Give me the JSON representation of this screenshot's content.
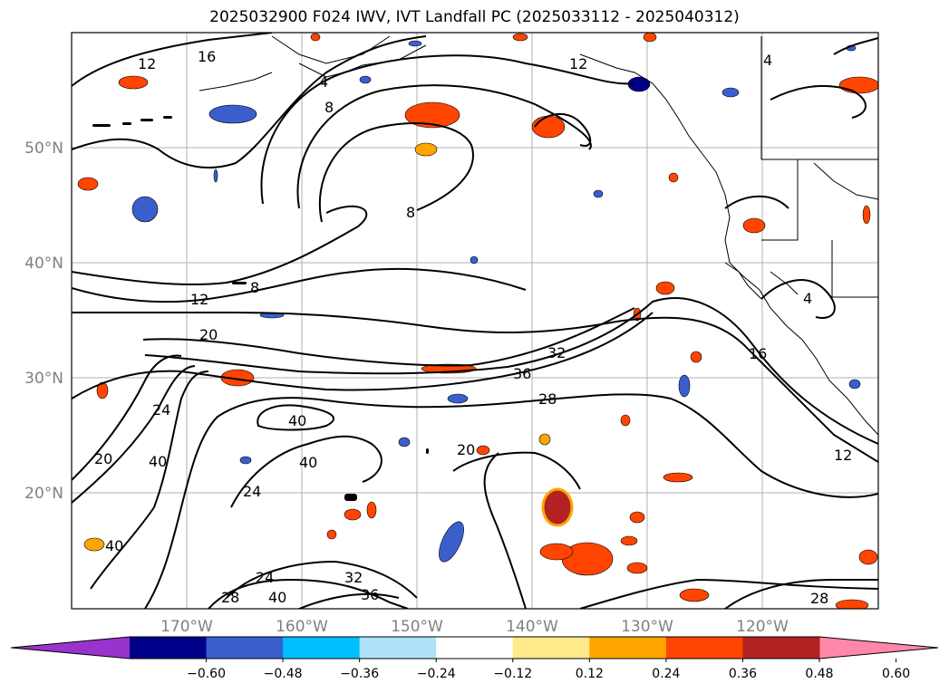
{
  "title": "2025032900 F024 IWV, IVT Landfall PC (2025033112 - 2025040312)",
  "lon_ticks": [
    "170°W",
    "160°W",
    "150°W",
    "140°W",
    "130°W",
    "120°W"
  ],
  "lat_ticks": [
    "50°N",
    "40°N",
    "30°N",
    "20°N"
  ],
  "colorbar": {
    "colors": [
      "#9933cc",
      "#00008b",
      "#3a5fcd",
      "#00bfff",
      "#aee2fa",
      "#ffffff",
      "#ffe98a",
      "#ffa500",
      "#ff4500",
      "#b22222",
      "#ff88aa"
    ],
    "labels": [
      "-0.60",
      "-0.48",
      "-0.36",
      "-0.24",
      "-0.12",
      "0.12",
      "0.24",
      "0.36",
      "0.48",
      "0.60"
    ]
  },
  "contour_labels": [
    "16",
    "12",
    "4",
    "8",
    "12",
    "4",
    "8",
    "12",
    "20",
    "24",
    "20",
    "40",
    "40",
    "40",
    "24",
    "32",
    "36",
    "28",
    "20",
    "16",
    "12",
    "4",
    "8",
    "24",
    "28",
    "40",
    "32",
    "36",
    "28",
    "40"
  ]
}
